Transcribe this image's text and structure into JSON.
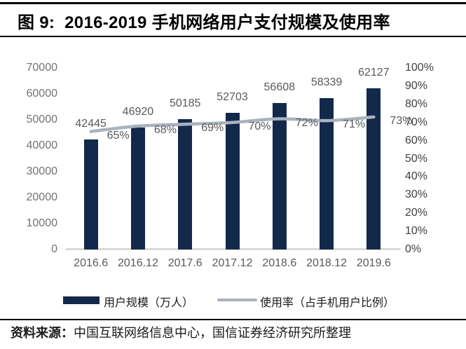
{
  "header": {
    "title": "图 9:  2016-2019 手机网络用户支付规模及使用率"
  },
  "footer": {
    "source_prefix": "资料来源：",
    "source_text": "中国互联网络信息中心，国信证券经济研究所整理"
  },
  "legend": {
    "bar_label": "用户规模（万人）",
    "line_label": "使用率（占手机用户比例）"
  },
  "colors": {
    "bar": "#13294B",
    "line": "#A9B3BE",
    "axis_line": "#D9D9D9",
    "left_axis_text": "#737373",
    "right_axis_text": "#404040",
    "data_label_text": "#595959",
    "rule": "#000000"
  },
  "chart_data": {
    "type": "bar",
    "subtype": "combo-bar-line",
    "title": "图 9: 2016-2019 手机网络用户支付规模及使用率",
    "categories": [
      "2016.6",
      "2016.12",
      "2017.6",
      "2017.12",
      "2018.6",
      "2018.12",
      "2019.6"
    ],
    "series": [
      {
        "name": "用户规模（万人）",
        "type": "bar",
        "axis": "left",
        "values": [
          42445,
          46920,
          50185,
          52703,
          56608,
          58339,
          62127
        ],
        "labels": [
          "42445",
          "46920",
          "50185",
          "52703",
          "56608",
          "58339",
          "62127"
        ]
      },
      {
        "name": "使用率（占手机用户比例）",
        "type": "line",
        "axis": "right",
        "values": [
          65,
          68,
          69,
          70,
          72,
          71,
          73
        ],
        "labels": [
          "65%",
          "68%",
          "69%",
          "70%",
          "72%",
          "71%",
          "73%"
        ]
      }
    ],
    "left_axis": {
      "min": 0,
      "max": 70000,
      "step": 10000,
      "tick_labels": [
        "0",
        "10000",
        "20000",
        "30000",
        "40000",
        "50000",
        "60000",
        "70000"
      ]
    },
    "right_axis": {
      "min": 0,
      "max": 100,
      "step": 10,
      "tick_labels": [
        "0%",
        "10%",
        "20%",
        "30%",
        "40%",
        "50%",
        "60%",
        "70%",
        "80%",
        "90%",
        "100%"
      ]
    },
    "grid": false,
    "legend_position": "bottom",
    "xlabel": "",
    "ylabel": ""
  }
}
